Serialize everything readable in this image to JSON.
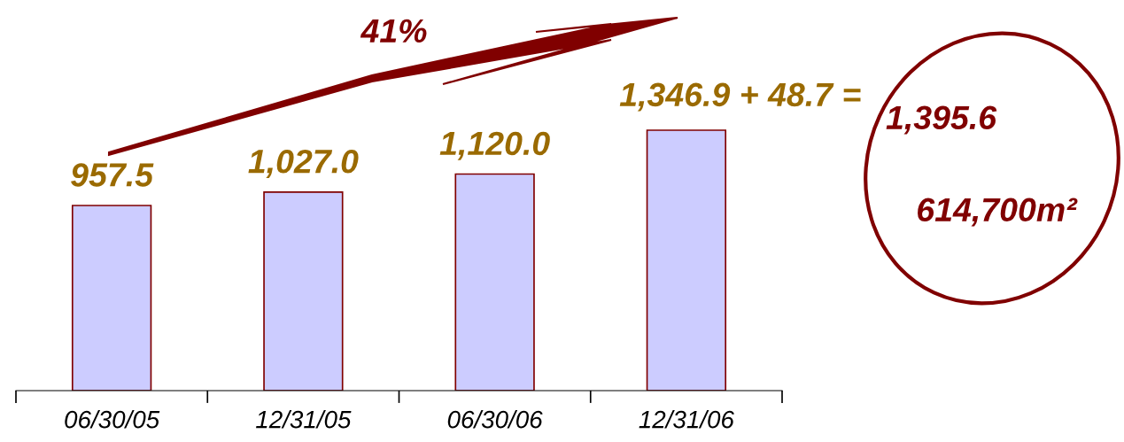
{
  "chart_data": {
    "type": "bar",
    "categories": [
      "06/30/05",
      "12/31/05",
      "06/30/06",
      "12/31/06"
    ],
    "values": [
      957.5,
      1027.0,
      1120.0,
      1346.9
    ],
    "value_labels": [
      "957.5",
      "1,027.0",
      "1,120.0",
      "1,346.9 + 48.7 ="
    ],
    "color": "#ccccff",
    "tick_labels": "x",
    "annotations": [
      "41%",
      "1,395.6",
      "614,700m²"
    ]
  }
}
